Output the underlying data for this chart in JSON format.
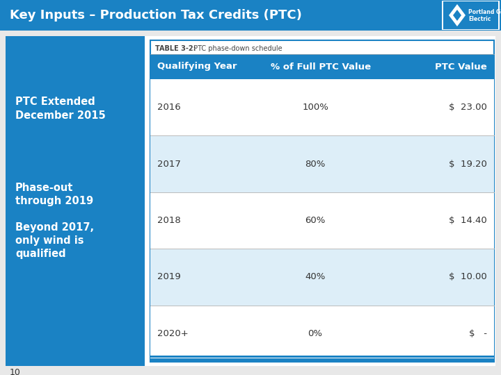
{
  "title": "Key Inputs – Production Tax Credits (PTC)",
  "title_bg_color": "#1a82c4",
  "title_text_color": "#ffffff",
  "title_fontsize": 13,
  "slide_bg_color": "#e8e8e8",
  "left_panel_color": "#1a82c4",
  "left_panel_text": [
    "PTC Extended\nDecember 2015",
    "Phase-out\nthrough 2019",
    "Beyond 2017,\nonly wind is\nqualified"
  ],
  "left_panel_text_color": "#ffffff",
  "table_title_bold": "TABLE 3-2:",
  "table_title_normal": " PTC phase-down schedule",
  "table_header": [
    "Qualifying Year",
    "% of Full PTC Value",
    "PTC Value"
  ],
  "table_header_bg": "#1a82c4",
  "table_header_text_color": "#ffffff",
  "table_rows": [
    [
      "2016",
      "100%",
      "$  23.00"
    ],
    [
      "2017",
      "80%",
      "$  19.20"
    ],
    [
      "2018",
      "60%",
      "$  14.40"
    ],
    [
      "2019",
      "40%",
      "$  10.00"
    ],
    [
      "2020+",
      "0%",
      "$   -"
    ]
  ],
  "table_row_bg_odd": "#ffffff",
  "table_row_bg_even": "#ddeef8",
  "table_text_color": "#333333",
  "table_border_color": "#1a82c4",
  "footer_number": "10",
  "logo_diamond_color": "#ffffff",
  "logo_box_color": "#1a82c4",
  "logo_text1": "Portland General",
  "logo_text2": "Electric"
}
